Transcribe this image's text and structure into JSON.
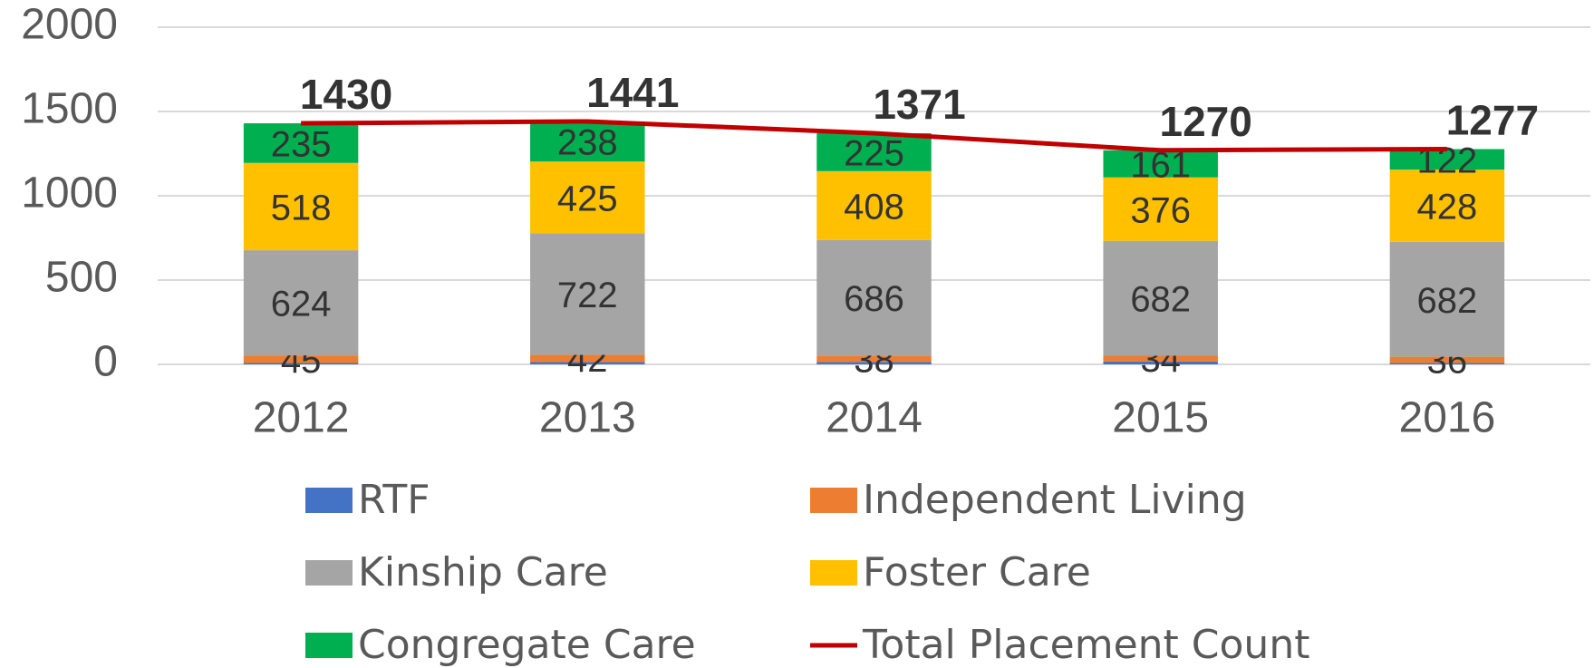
{
  "chart_data": {
    "type": "bar",
    "stacked": true,
    "categories": [
      "2012",
      "2013",
      "2014",
      "2015",
      "2016"
    ],
    "series": [
      {
        "name": "RTF",
        "color": "#4472c4",
        "values": [
          8,
          14,
          14,
          17,
          9
        ],
        "data_labels": false
      },
      {
        "name": "Independent Living",
        "color": "#ed7d31",
        "values": [
          45,
          42,
          38,
          34,
          36
        ],
        "data_labels": true
      },
      {
        "name": "Kinship Care",
        "color": "#a5a5a5",
        "values": [
          624,
          722,
          686,
          682,
          682
        ],
        "data_labels": true
      },
      {
        "name": "Foster Care",
        "color": "#ffc000",
        "values": [
          518,
          425,
          408,
          376,
          428
        ],
        "data_labels": true
      },
      {
        "name": "Congregate Care",
        "color": "#00b050",
        "values": [
          235,
          238,
          225,
          161,
          122
        ],
        "data_labels": true
      },
      {
        "name": "Total Placement Count",
        "type": "line",
        "color": "#c00000",
        "values": [
          1430,
          1441,
          1371,
          1270,
          1277
        ],
        "data_labels": true
      }
    ],
    "ylim": [
      0,
      2000
    ],
    "yticks": [
      0,
      500,
      1000,
      1500,
      2000
    ],
    "grid": true,
    "legend": "bottom"
  }
}
